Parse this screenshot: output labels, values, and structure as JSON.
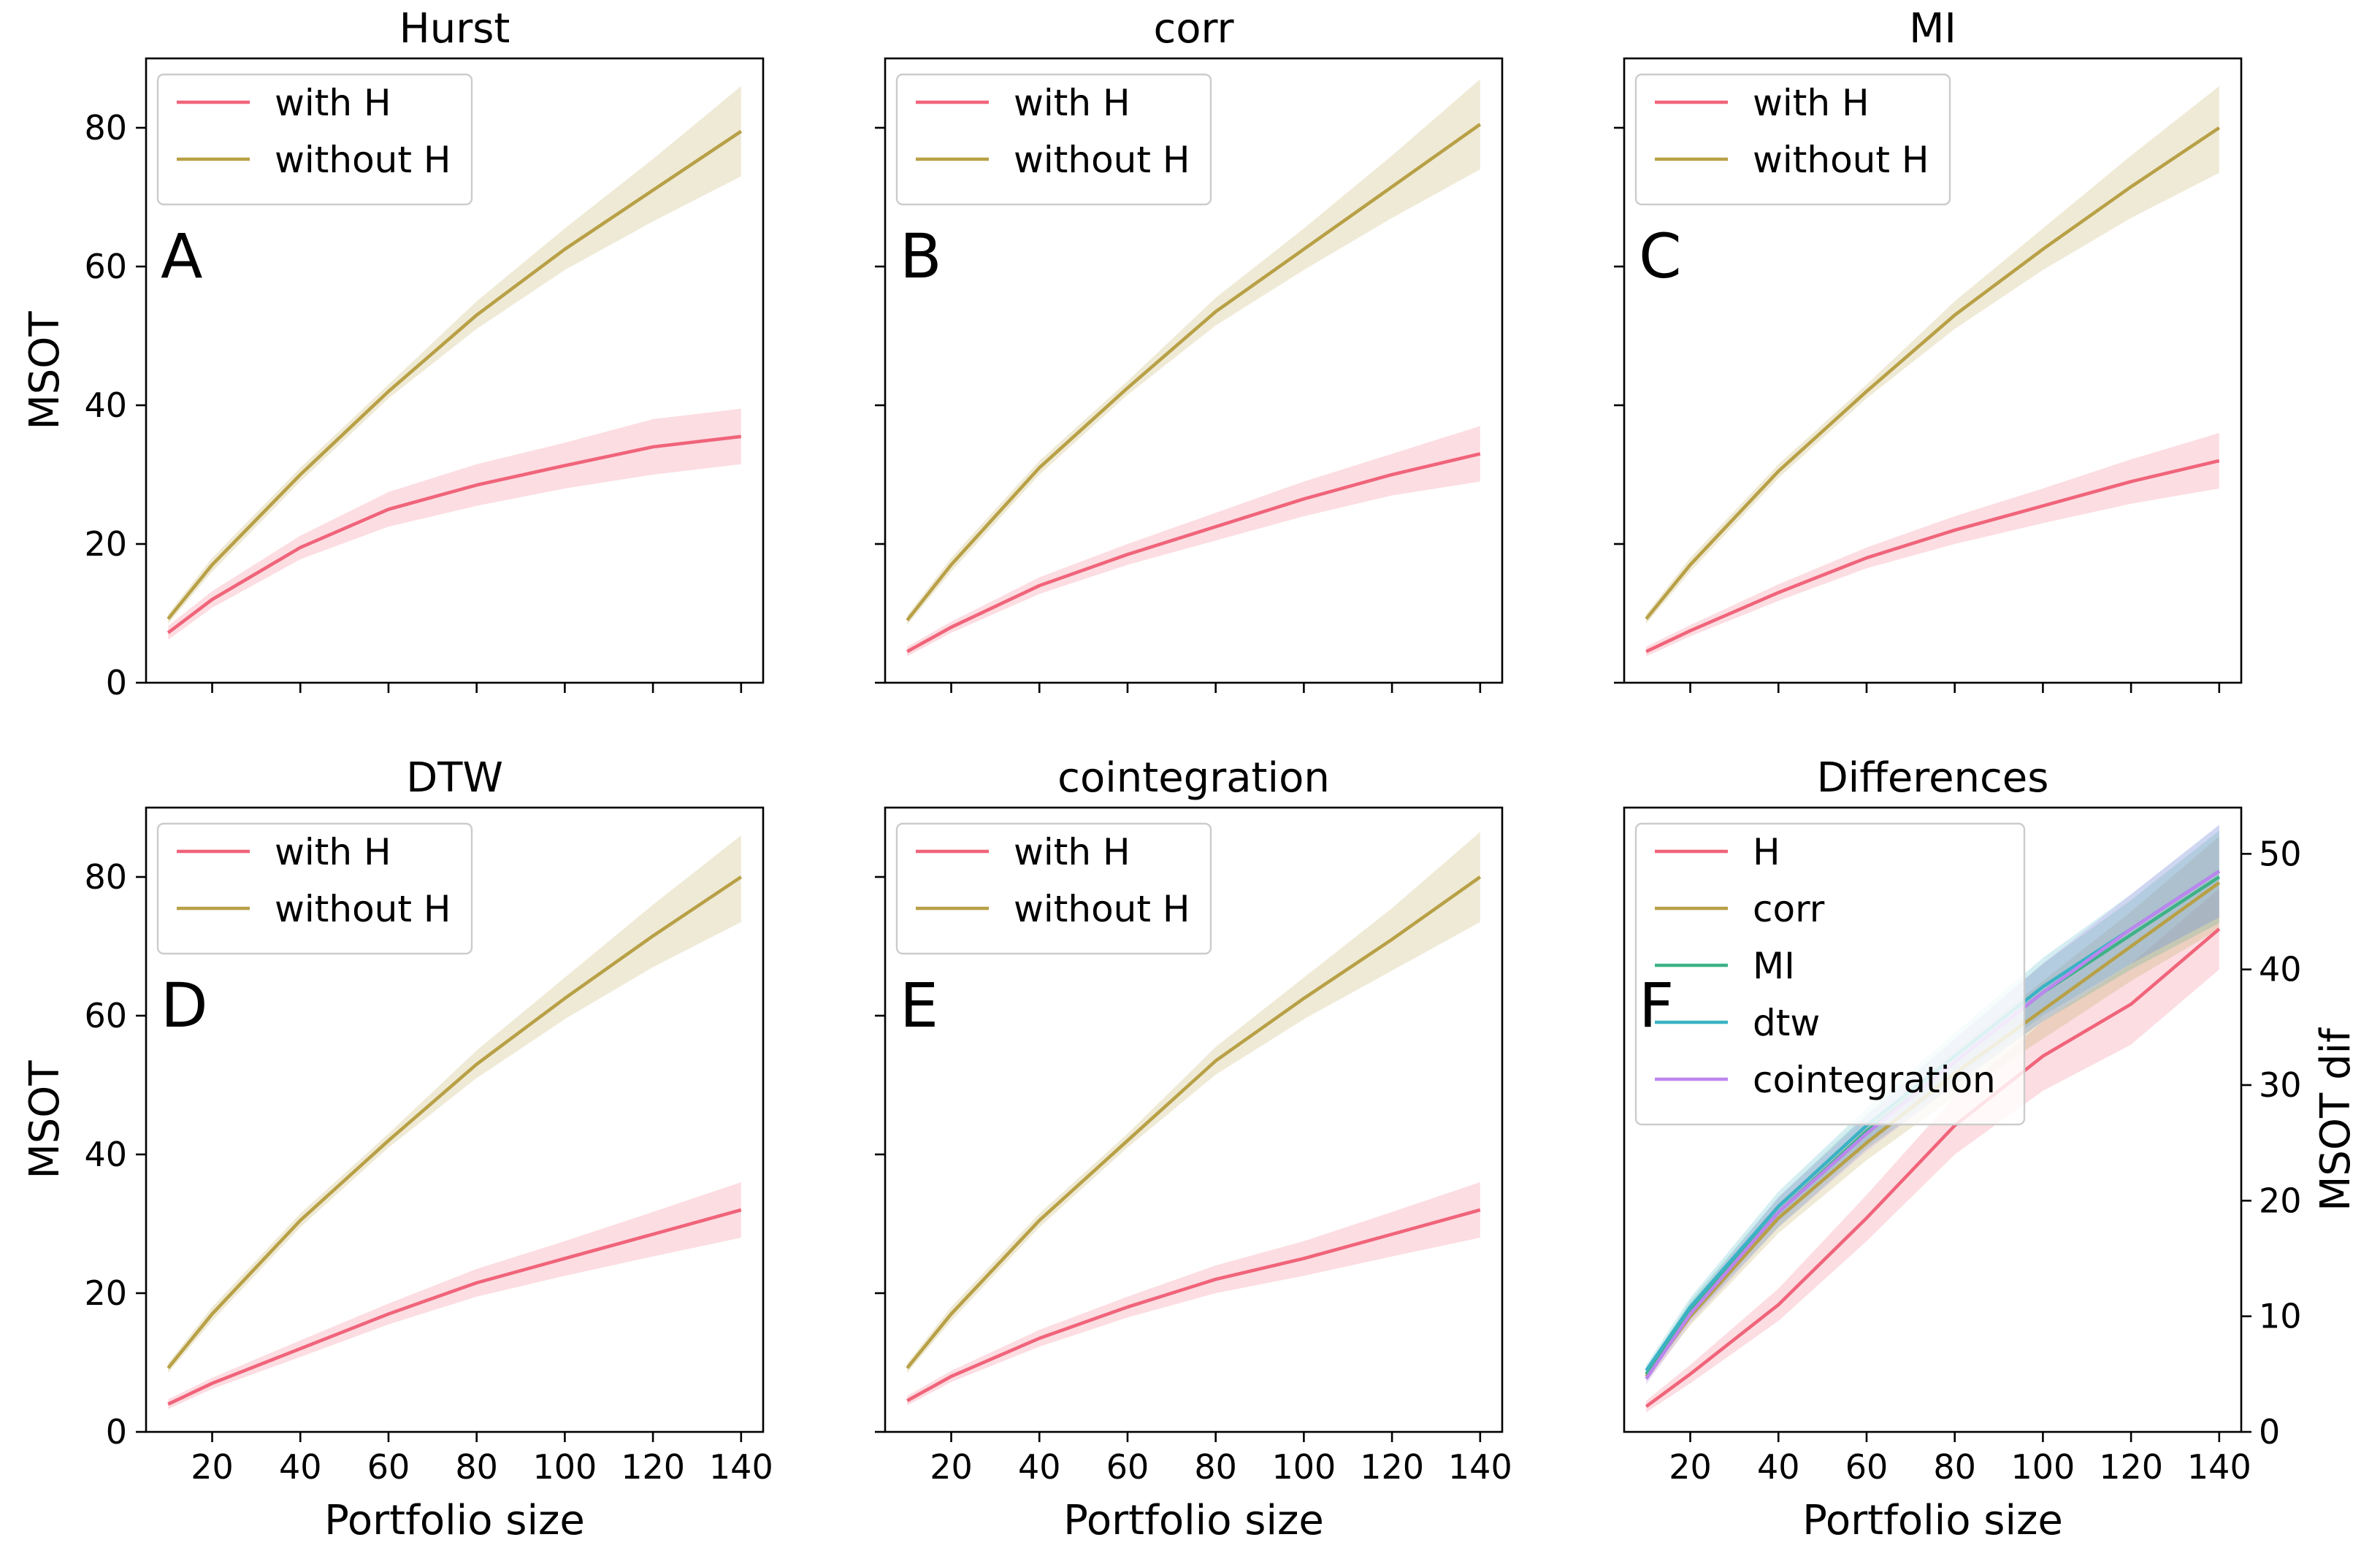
{
  "colors": {
    "with_h": "#f0647a",
    "without_h": "#b8a046",
    "H": "#f0647a",
    "corr": "#b8a046",
    "MI": "#3db287",
    "dtw": "#3ab3c4",
    "cointegration": "#bb86ee"
  },
  "chart_data": [
    {
      "type": "line",
      "title": "Hurst",
      "panel_letter": "A",
      "xlabel": "",
      "ylabel": "MSOT",
      "xlim": [
        5,
        145
      ],
      "ylim": [
        0,
        90
      ],
      "xticks": [
        20,
        40,
        60,
        80,
        100,
        120,
        140
      ],
      "xtick_labels_visible": false,
      "yticks": [
        0,
        20,
        40,
        60,
        80
      ],
      "ytick_labels_visible": true,
      "legend_position": "upper-left",
      "x": [
        10,
        20,
        40,
        60,
        80,
        100,
        120,
        140
      ],
      "series": [
        {
          "name": "with H",
          "color_key": "with_h",
          "values": [
            7.2,
            12,
            19.5,
            25,
            28.5,
            31.3,
            34,
            35.5
          ],
          "band_lower": [
            6.2,
            10.8,
            17.8,
            22.5,
            25.5,
            28,
            30,
            31.5
          ],
          "band_upper": [
            8.2,
            13.2,
            21.2,
            27.5,
            31.5,
            34.6,
            38,
            39.5
          ]
        },
        {
          "name": "without H",
          "color_key": "without_h",
          "values": [
            9.2,
            17,
            30,
            42,
            53,
            62.5,
            71,
            79.5
          ],
          "band_lower": [
            8.5,
            16,
            29,
            41,
            51,
            59.5,
            66.5,
            73
          ],
          "band_upper": [
            9.9,
            18,
            31,
            43,
            55,
            65.5,
            75.5,
            86
          ]
        }
      ]
    },
    {
      "type": "line",
      "title": "corr",
      "panel_letter": "B",
      "xlabel": "",
      "ylabel": "",
      "xlim": [
        5,
        145
      ],
      "ylim": [
        0,
        90
      ],
      "xticks": [
        20,
        40,
        60,
        80,
        100,
        120,
        140
      ],
      "xtick_labels_visible": false,
      "yticks": [
        0,
        20,
        40,
        60,
        80
      ],
      "ytick_labels_visible": false,
      "legend_position": "upper-left",
      "x": [
        10,
        20,
        40,
        60,
        80,
        100,
        120,
        140
      ],
      "series": [
        {
          "name": "with H",
          "color_key": "with_h",
          "values": [
            4.5,
            8,
            14,
            18.5,
            22.5,
            26.5,
            30,
            33
          ],
          "band_lower": [
            3.8,
            7.2,
            12.8,
            17,
            20.5,
            24,
            27,
            29
          ],
          "band_upper": [
            5.2,
            8.8,
            15.2,
            20,
            24.5,
            29,
            33,
            37
          ]
        },
        {
          "name": "without H",
          "color_key": "without_h",
          "values": [
            9,
            17,
            31,
            42.5,
            53.5,
            62.5,
            71.5,
            80.5
          ],
          "band_lower": [
            8.3,
            16,
            30,
            41.5,
            51.5,
            59.5,
            67,
            74
          ],
          "band_upper": [
            9.7,
            18,
            32,
            43.5,
            55.5,
            65.5,
            76,
            87
          ]
        }
      ]
    },
    {
      "type": "line",
      "title": "MI",
      "panel_letter": "C",
      "xlabel": "",
      "ylabel": "",
      "xlim": [
        5,
        145
      ],
      "ylim": [
        0,
        90
      ],
      "xticks": [
        20,
        40,
        60,
        80,
        100,
        120,
        140
      ],
      "xtick_labels_visible": false,
      "yticks": [
        0,
        20,
        40,
        60,
        80
      ],
      "ytick_labels_visible": false,
      "legend_position": "upper-left",
      "x": [
        10,
        20,
        40,
        60,
        80,
        100,
        120,
        140
      ],
      "series": [
        {
          "name": "with H",
          "color_key": "with_h",
          "values": [
            4.5,
            7.5,
            13,
            18,
            22,
            25.5,
            29,
            32
          ],
          "band_lower": [
            3.8,
            6.7,
            11.8,
            16.5,
            20,
            23,
            25.8,
            28
          ],
          "band_upper": [
            5.2,
            8.3,
            14.2,
            19.5,
            24,
            28,
            32.2,
            36
          ]
        },
        {
          "name": "without H",
          "color_key": "without_h",
          "values": [
            9.2,
            17,
            30.5,
            42,
            53,
            62.5,
            71.5,
            80
          ],
          "band_lower": [
            8.5,
            16,
            29.5,
            41,
            51,
            59.5,
            67,
            73.5
          ],
          "band_upper": [
            9.9,
            18,
            31.5,
            43,
            55,
            65.5,
            76,
            86
          ]
        }
      ]
    },
    {
      "type": "line",
      "title": "DTW",
      "panel_letter": "D",
      "xlabel": "Portfolio size",
      "ylabel": "MSOT",
      "xlim": [
        5,
        145
      ],
      "ylim": [
        0,
        90
      ],
      "xticks": [
        20,
        40,
        60,
        80,
        100,
        120,
        140
      ],
      "xtick_labels_visible": true,
      "yticks": [
        0,
        20,
        40,
        60,
        80
      ],
      "ytick_labels_visible": true,
      "legend_position": "upper-left",
      "x": [
        10,
        20,
        40,
        60,
        80,
        100,
        120,
        140
      ],
      "series": [
        {
          "name": "with H",
          "color_key": "with_h",
          "values": [
            4,
            7,
            12,
            17,
            21.5,
            25,
            28.5,
            32
          ],
          "band_lower": [
            3.3,
            6.2,
            10.8,
            15.5,
            19.5,
            22.5,
            25.3,
            28
          ],
          "band_upper": [
            4.7,
            7.8,
            13.2,
            18.5,
            23.5,
            27.5,
            31.7,
            36
          ]
        },
        {
          "name": "without H",
          "color_key": "without_h",
          "values": [
            9.2,
            17,
            30.5,
            42,
            53,
            62.5,
            71.5,
            80
          ],
          "band_lower": [
            8.5,
            16,
            29.5,
            41,
            51,
            59.5,
            67,
            73.5
          ],
          "band_upper": [
            9.9,
            18,
            31.5,
            43,
            55,
            65.5,
            76,
            86
          ]
        }
      ]
    },
    {
      "type": "line",
      "title": "cointegration",
      "panel_letter": "E",
      "xlabel": "Portfolio size",
      "ylabel": "",
      "xlim": [
        5,
        145
      ],
      "ylim": [
        0,
        90
      ],
      "xticks": [
        20,
        40,
        60,
        80,
        100,
        120,
        140
      ],
      "xtick_labels_visible": true,
      "yticks": [
        0,
        20,
        40,
        60,
        80
      ],
      "ytick_labels_visible": false,
      "legend_position": "upper-left",
      "x": [
        10,
        20,
        40,
        60,
        80,
        100,
        120,
        140
      ],
      "series": [
        {
          "name": "with H",
          "color_key": "with_h",
          "values": [
            4.5,
            8,
            13.5,
            18,
            22,
            25,
            28.5,
            32
          ],
          "band_lower": [
            3.8,
            7.2,
            12.3,
            16.5,
            20,
            22.5,
            25.3,
            28
          ],
          "band_upper": [
            5.2,
            8.8,
            14.7,
            19.5,
            24,
            27.5,
            31.7,
            36
          ]
        },
        {
          "name": "without H",
          "color_key": "without_h",
          "values": [
            9.2,
            17,
            30.5,
            42,
            53.5,
            62.5,
            71,
            80
          ],
          "band_lower": [
            8.5,
            16,
            29.5,
            41,
            51.5,
            59.5,
            66.5,
            73.5
          ],
          "band_upper": [
            9.9,
            18,
            31.5,
            43,
            55.5,
            65.5,
            75.5,
            86.5
          ]
        }
      ]
    },
    {
      "type": "line",
      "title": "Differences",
      "panel_letter": "F",
      "xlabel": "Portfolio size",
      "ylabel": "MSOT dif",
      "ylabel_side": "right",
      "xlim": [
        5,
        145
      ],
      "ylim": [
        0,
        54
      ],
      "xticks": [
        20,
        40,
        60,
        80,
        100,
        120,
        140
      ],
      "xtick_labels_visible": true,
      "yticks": [
        0,
        10,
        20,
        30,
        40,
        50
      ],
      "ytick_labels_visible": true,
      "ytick_side": "right",
      "legend_position": "upper-left",
      "x": [
        10,
        20,
        40,
        60,
        80,
        100,
        120,
        140
      ],
      "series": [
        {
          "name": "H",
          "color_key": "H",
          "values": [
            2.2,
            5,
            11,
            18.5,
            26.5,
            32.5,
            37,
            43.5
          ],
          "band_lower": [
            1.7,
            4.2,
            9.6,
            16.5,
            24,
            29.5,
            33.5,
            40
          ],
          "band_upper": [
            2.7,
            5.8,
            12.4,
            20.5,
            29,
            35.5,
            40.5,
            47
          ]
        },
        {
          "name": "corr",
          "color_key": "corr",
          "values": [
            4.8,
            10,
            18.5,
            25,
            31,
            36.5,
            42,
            47.5
          ],
          "band_lower": [
            4.3,
            9.2,
            17.2,
            23.5,
            29,
            34,
            39,
            43.5
          ],
          "band_upper": [
            5.3,
            10.8,
            19.8,
            26.5,
            33,
            39,
            45,
            51.5
          ]
        },
        {
          "name": "MI",
          "color_key": "MI",
          "values": [
            5,
            10.5,
            19,
            26,
            32,
            38,
            43,
            48
          ],
          "band_lower": [
            4.5,
            9.7,
            17.7,
            24.5,
            30,
            35.5,
            40,
            44
          ],
          "band_upper": [
            5.5,
            11.3,
            20.3,
            27.5,
            34,
            40.5,
            46,
            52
          ]
        },
        {
          "name": "dtw",
          "color_key": "dtw",
          "values": [
            5.3,
            10.8,
            19.5,
            26.5,
            32.5,
            38.5,
            43.5,
            48.5
          ],
          "band_lower": [
            4.8,
            10,
            18.2,
            25,
            30.5,
            36,
            40.5,
            44.5
          ],
          "band_upper": [
            5.8,
            11.6,
            20.8,
            28,
            34.5,
            41,
            46.5,
            52.5
          ]
        },
        {
          "name": "cointegration",
          "color_key": "cointegration",
          "values": [
            4.6,
            10.2,
            19,
            25.8,
            32,
            38,
            43.5,
            48.5
          ],
          "band_lower": [
            4.1,
            9.4,
            17.7,
            24.3,
            30,
            35.5,
            40.5,
            44.5
          ],
          "band_upper": [
            5.1,
            11,
            20.3,
            27.3,
            34,
            40.5,
            46.5,
            52.5
          ]
        }
      ]
    }
  ]
}
